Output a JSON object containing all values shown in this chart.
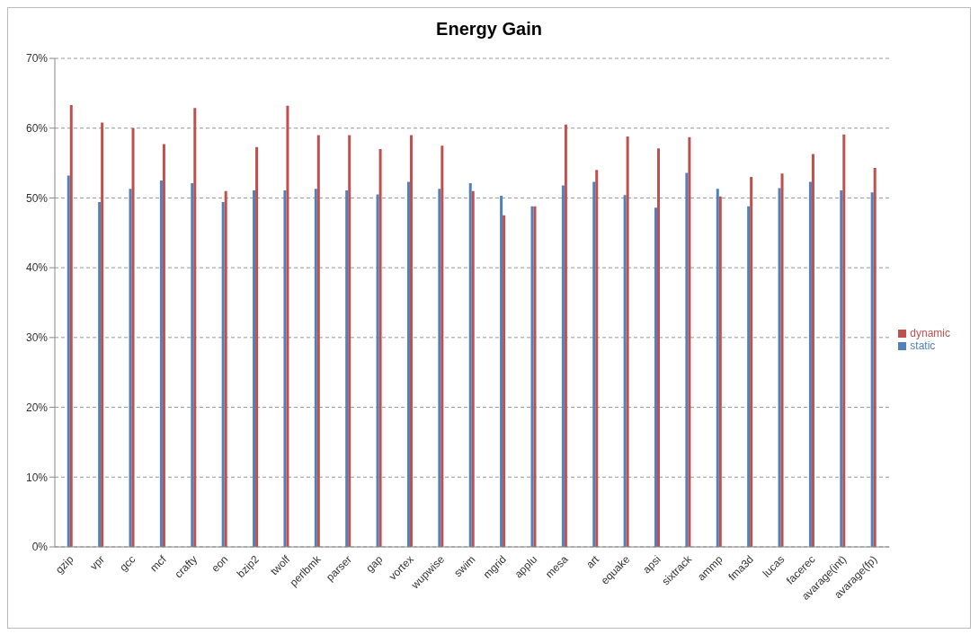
{
  "chart_data": {
    "type": "bar",
    "title": "Energy Gain",
    "categories": [
      "gzip",
      "vpr",
      "gcc",
      "mcf",
      "crafty",
      "eon",
      "bzip2",
      "twolf",
      "perlbmk",
      "parser",
      "gap",
      "vortex",
      "wupwise",
      "swim",
      "mgrid",
      "applu",
      "mesa",
      "art",
      "equake",
      "apsi",
      "sixtrack",
      "ammp",
      "fma3d",
      "lucas",
      "facerec",
      "avarage(int)",
      "avarage(fp)"
    ],
    "series": [
      {
        "name": "static",
        "color": "#4f81bd",
        "values": [
          53.2,
          49.4,
          51.3,
          52.5,
          52.1,
          49.4,
          51.1,
          51.1,
          51.3,
          51.1,
          50.5,
          52.3,
          51.3,
          52.1,
          50.3,
          48.8,
          51.8,
          52.3,
          50.4,
          48.6,
          53.6,
          51.3,
          48.8,
          51.4,
          52.3,
          51.1,
          50.8
        ]
      },
      {
        "name": "dynamic",
        "color": "#c0504d",
        "values": [
          63.3,
          60.8,
          60.0,
          57.7,
          62.9,
          51.0,
          57.3,
          63.2,
          59.0,
          59.0,
          57.0,
          59.0,
          57.5,
          51.0,
          47.5,
          48.8,
          60.5,
          54.0,
          58.8,
          57.1,
          58.7,
          50.2,
          53.0,
          53.5,
          56.3,
          59.1,
          54.3
        ]
      }
    ],
    "ylim": [
      0,
      70
    ],
    "yticks": [
      {
        "value": 0,
        "label": "0%"
      },
      {
        "value": 10,
        "label": "10%"
      },
      {
        "value": 20,
        "label": "20%"
      },
      {
        "value": 30,
        "label": "30%"
      },
      {
        "value": 40,
        "label": "40%"
      },
      {
        "value": 50,
        "label": "50%"
      },
      {
        "value": 60,
        "label": "60%"
      },
      {
        "value": 70,
        "label": "70%"
      }
    ],
    "grid": "y",
    "legend": "right"
  }
}
